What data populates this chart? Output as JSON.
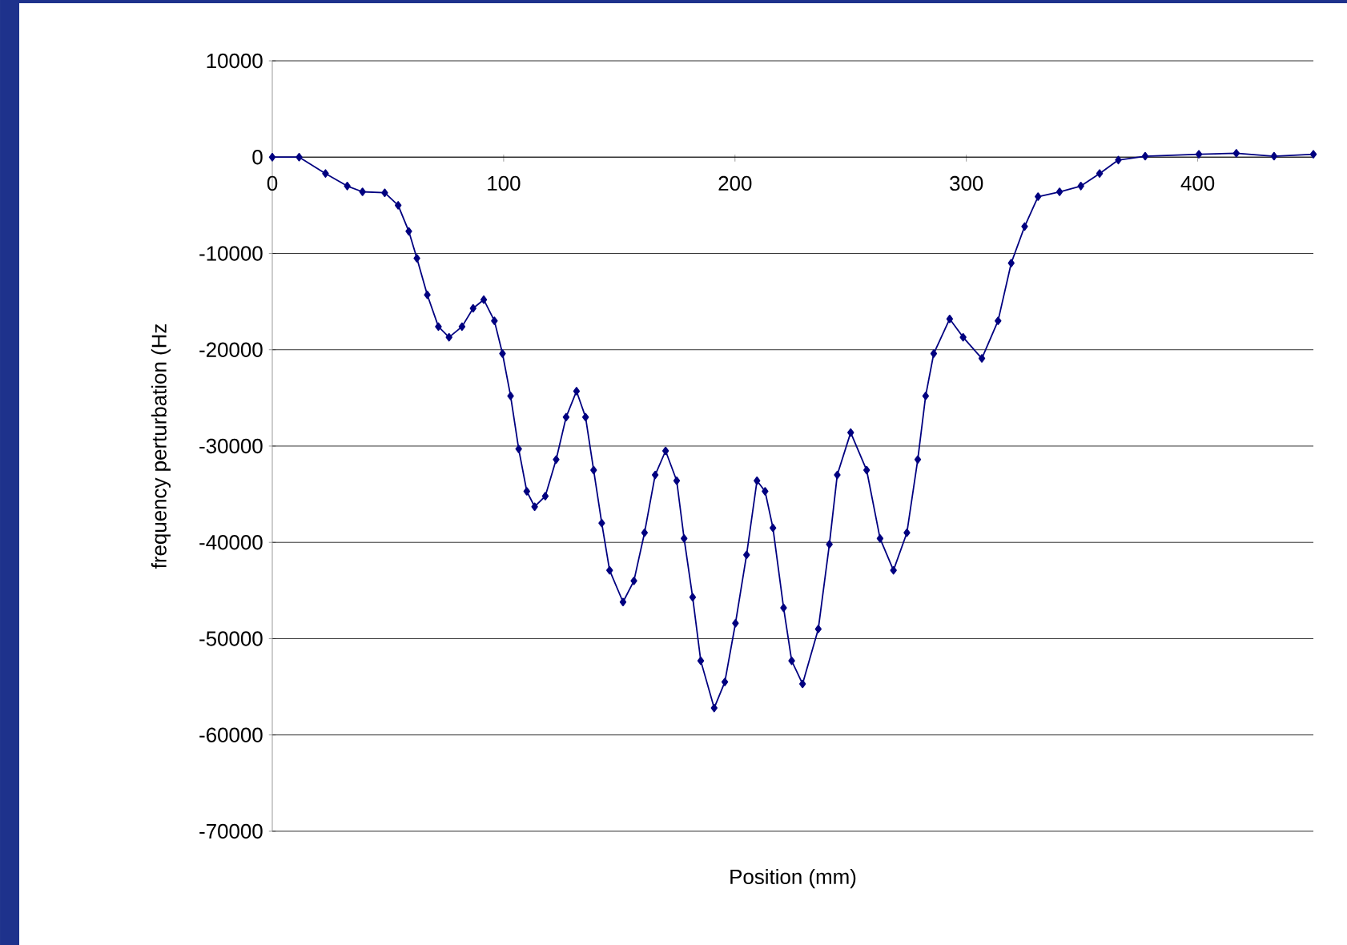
{
  "chart_data": {
    "type": "line",
    "xlabel": "Position (mm)",
    "ylabel": "frequency perturbation (Hz",
    "xlim": [
      0,
      450
    ],
    "xticks": [
      0,
      100,
      200,
      300,
      400
    ],
    "ylim": [
      -70000,
      10000
    ],
    "yticks": [
      -70000,
      -60000,
      -50000,
      -40000,
      -30000,
      -20000,
      -10000,
      0,
      10000
    ],
    "grid": "y",
    "marker": "diamond",
    "line_style": "solid",
    "series": [
      {
        "color": "#000080",
        "x": [
          0,
          11.6,
          23,
          32.4,
          39,
          48.6,
          54.4,
          59,
          62.5,
          67,
          71.8,
          76.4,
          82,
          86.8,
          91.4,
          96,
          99.5,
          103,
          106.5,
          110,
          113.4,
          118,
          122.7,
          127,
          131.5,
          135.4,
          138.9,
          142.4,
          145.8,
          151.6,
          156.3,
          160.9,
          165.5,
          170,
          174.8,
          178,
          181.7,
          185.2,
          191,
          195.6,
          200.2,
          205,
          209.5,
          213,
          216.4,
          221,
          224.5,
          229.2,
          236,
          240.8,
          244.2,
          250,
          256.9,
          262.7,
          268.5,
          274.3,
          279,
          282.4,
          285.9,
          292.8,
          298.6,
          306.7,
          313.7,
          319.4,
          325.2,
          331,
          340.3,
          349.5,
          357.6,
          365.7,
          377.3,
          400.5,
          416.7,
          433,
          450
        ],
        "values": [
          0,
          0,
          -1700,
          -3000,
          -3600,
          -3700,
          -5000,
          -7700,
          -10500,
          -14300,
          -17600,
          -18700,
          -17600,
          -15700,
          -14800,
          -17000,
          -20400,
          -24800,
          -30300,
          -34700,
          -36300,
          -35200,
          -31400,
          -27000,
          -24300,
          -27000,
          -32500,
          -38000,
          -42900,
          -46200,
          -44000,
          -39000,
          -33000,
          -30500,
          -33600,
          -39600,
          -45700,
          -52300,
          -57200,
          -54500,
          -48400,
          -41300,
          -33600,
          -34700,
          -38500,
          -46800,
          -52300,
          -54700,
          -49000,
          -40200,
          -33000,
          -28600,
          -32500,
          -39600,
          -42900,
          -39000,
          -31400,
          -24800,
          -20400,
          -16800,
          -18700,
          -20900,
          -17000,
          -11000,
          -7200,
          -4100,
          -3600,
          -3000,
          -1700,
          -300,
          100,
          300,
          400,
          100,
          300
        ]
      }
    ]
  }
}
